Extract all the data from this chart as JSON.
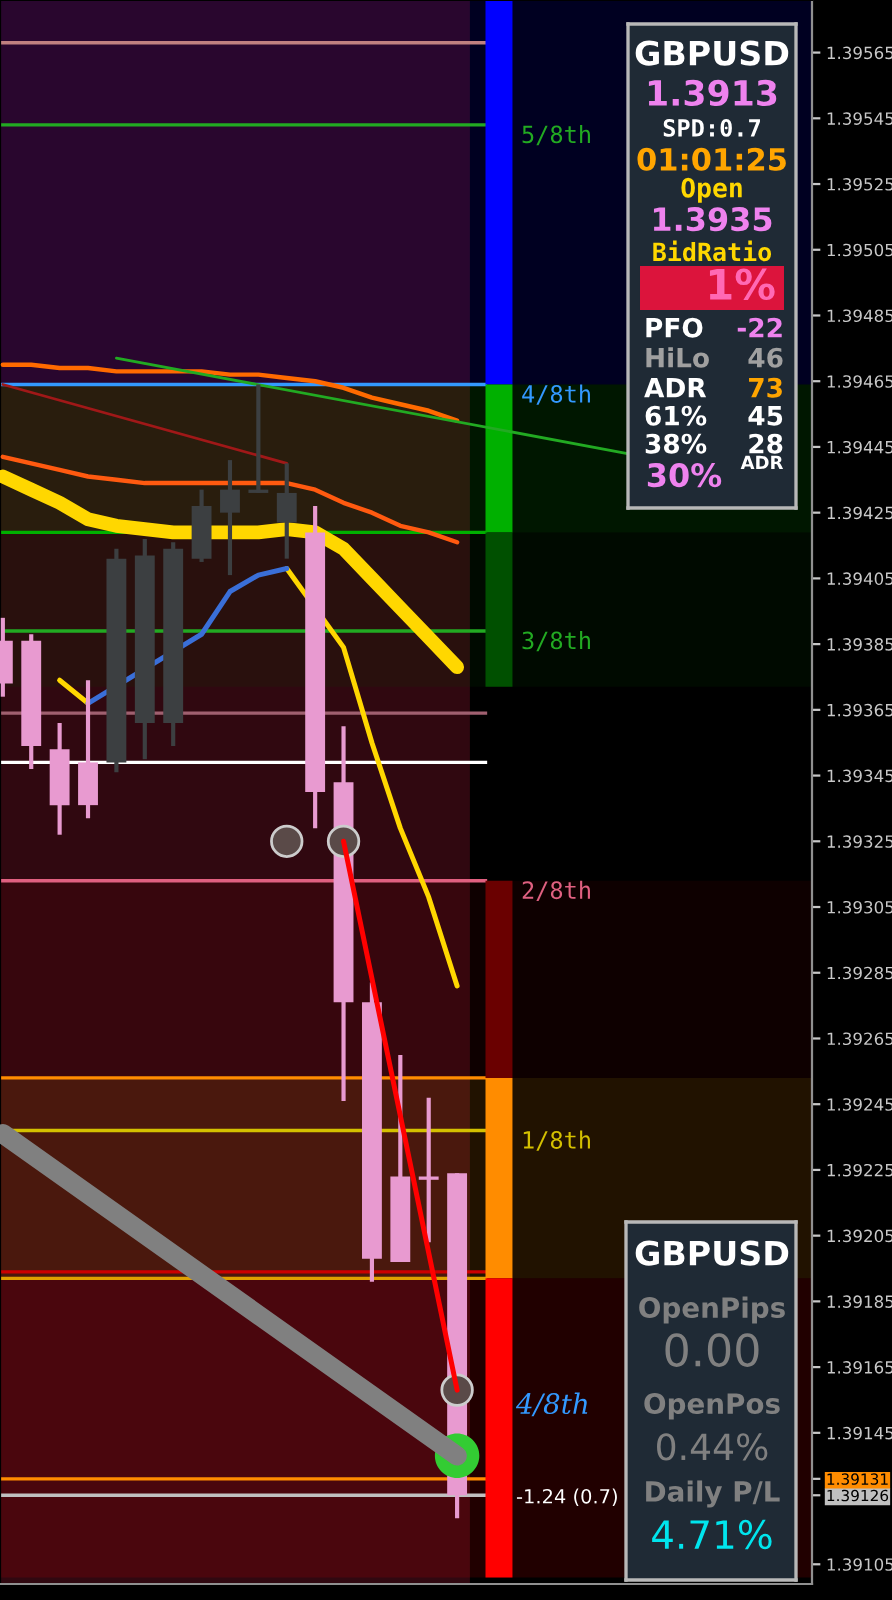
{
  "chart_data": [
    {
      "type": "candlestick",
      "categories": [
        null,
        null,
        null,
        null,
        null,
        null,
        null,
        null,
        null,
        null,
        null,
        null,
        null,
        null,
        null,
        null,
        null,
        null,
        null,
        null,
        null,
        null,
        null,
        null,
        null,
        null,
        null,
        null,
        null
      ],
      "ohlc": [
        [
          1.39386,
          1.39393,
          1.39369,
          1.39373
        ],
        [
          1.39386,
          1.39388,
          1.39347,
          1.39354
        ],
        [
          1.39353,
          1.39361,
          1.39327,
          1.39336
        ],
        [
          1.39349,
          1.39374,
          1.39332,
          1.39336
        ],
        [
          1.39349,
          1.39414,
          1.39346,
          1.39411
        ],
        [
          1.39361,
          1.39417,
          1.3935,
          1.39412
        ],
        [
          1.39361,
          1.39416,
          1.39354,
          1.39414
        ],
        [
          1.39411,
          1.39432,
          1.3941,
          1.39427
        ],
        [
          1.39425,
          1.39441,
          1.39406,
          1.39432
        ],
        [
          1.39431,
          1.39464,
          1.39431,
          1.39432
        ],
        [
          1.39422,
          1.3944,
          1.39411,
          1.39431
        ],
        [
          1.39419,
          1.39427,
          1.39329,
          1.3934
        ],
        [
          1.39343,
          1.3936,
          1.39246,
          1.39276
        ],
        [
          1.39276,
          1.39282,
          1.39191,
          1.39198
        ],
        [
          1.39223,
          1.3926,
          1.39197,
          1.39197
        ],
        [
          1.39223,
          1.39247,
          1.39203,
          1.39222
        ],
        [
          1.39224,
          1.39224,
          1.39119,
          1.39126
        ],
        null,
        null,
        null,
        null,
        null,
        null,
        null,
        null,
        null,
        null,
        null,
        null
      ],
      "colors": [
        "#e89ad0",
        "#e89ad0",
        "#e89ad0",
        "#e89ad0",
        "#3c3f41",
        "#3c3f41",
        "#3c3f41",
        "#3c3f41",
        "#3c3f41",
        "#3c3f41",
        "#3c3f41",
        "#e89ad0",
        "#e89ad0",
        "#e89ad0",
        "#e89ad0",
        "#e89ad0",
        "#e89ad0",
        null,
        null,
        null,
        null,
        null,
        null,
        null,
        null,
        null,
        null,
        null,
        null
      ],
      "series": [
        {
          "type": "line",
          "color": "#ff6a00",
          "values": [
            1.3947,
            1.3947,
            1.39469,
            1.39469,
            1.39468,
            1.39468,
            1.39468,
            1.39468,
            1.39467,
            1.39467,
            1.39466,
            1.39465,
            1.39463,
            1.3946,
            1.39458,
            1.39456,
            1.39453,
            null,
            null,
            null,
            null,
            null,
            null,
            null,
            null,
            null,
            null,
            null,
            null
          ]
        },
        {
          "type": "line",
          "color": "#ff5a10",
          "values": [
            1.39442,
            1.3944,
            1.39438,
            1.39436,
            1.39435,
            1.39434,
            1.39434,
            1.39434,
            1.39434,
            1.39434,
            1.39434,
            1.39432,
            1.39428,
            1.39425,
            1.39421,
            1.39419,
            1.39416,
            null,
            null,
            null,
            null,
            null,
            null,
            null,
            null,
            null,
            null,
            null,
            null
          ]
        },
        {
          "type": "line",
          "color": "#22aa22",
          "values": [
            null,
            null,
            null,
            null,
            1.39472,
            null,
            null,
            null,
            null,
            null,
            null,
            null,
            null,
            null,
            null,
            null,
            null,
            null,
            null,
            null,
            null,
            null,
            1.39443,
            null,
            null,
            null,
            null,
            null,
            null
          ]
        },
        {
          "type": "line",
          "color": "#a01818",
          "values": [
            1.39464,
            null,
            null,
            null,
            null,
            null,
            null,
            null,
            null,
            null,
            1.3944,
            null,
            null,
            null,
            null,
            null,
            null,
            null,
            null,
            null,
            null,
            null,
            null,
            null,
            null,
            null,
            null,
            null,
            null
          ]
        },
        {
          "type": "line",
          "color": "#ffd700",
          "values": [
            1.39436,
            1.39432,
            1.39428,
            1.39423,
            1.39421,
            1.3942,
            1.39419,
            1.39419,
            1.39419,
            1.39419,
            1.3942,
            1.39419,
            1.39414,
            1.39405,
            1.39396,
            1.39387,
            1.39378,
            null,
            null,
            null,
            null,
            null,
            null,
            null,
            null,
            null,
            null,
            null,
            null
          ]
        },
        {
          "type": "line",
          "color": "#ffd700",
          "values": [
            null,
            null,
            1.39374,
            1.39367,
            null,
            null,
            null,
            null,
            null,
            null,
            null,
            null,
            null,
            null,
            null,
            null,
            null,
            null,
            null,
            null,
            null,
            null,
            null,
            null,
            null,
            null,
            null,
            null,
            null
          ]
        },
        {
          "type": "line",
          "color": "#ffd700",
          "values": [
            null,
            null,
            null,
            null,
            null,
            null,
            null,
            null,
            null,
            null,
            1.39408,
            null,
            1.39384,
            1.39355,
            1.39329,
            1.39308,
            1.39281,
            null,
            null,
            null,
            null,
            null,
            null,
            null,
            null,
            null,
            null,
            null,
            null
          ]
        },
        {
          "type": "line",
          "color": "#3a6fd8",
          "values": [
            null,
            null,
            null,
            1.39367,
            null,
            null,
            null,
            1.39388,
            1.39401,
            1.39406,
            1.39408,
            null,
            null,
            null,
            null,
            null,
            null,
            null,
            null,
            null,
            null,
            null,
            null,
            null,
            null,
            null,
            null,
            null,
            null
          ]
        },
        {
          "type": "line",
          "color": "#808080",
          "values": [
            1.39236,
            null,
            null,
            null,
            null,
            null,
            null,
            null,
            null,
            null,
            null,
            null,
            null,
            null,
            null,
            null,
            1.39138,
            null,
            null,
            null,
            null,
            null,
            null,
            null,
            null,
            null,
            null,
            null,
            null
          ]
        },
        {
          "type": "line",
          "color": "#ff0000",
          "values": [
            null,
            null,
            null,
            null,
            null,
            null,
            null,
            null,
            null,
            null,
            null,
            null,
            1.39325,
            null,
            null,
            null,
            1.39158,
            null,
            null,
            null,
            null,
            null,
            null,
            null,
            null,
            null,
            null,
            null,
            null
          ]
        },
        {
          "type": "scatter",
          "color": "#5a4a48",
          "marker": "circle",
          "values": [
            null,
            null,
            null,
            null,
            null,
            null,
            null,
            null,
            null,
            null,
            1.39325,
            null,
            1.39325,
            null,
            null,
            null,
            1.39158,
            null,
            null,
            null,
            null,
            null,
            null,
            null,
            null,
            null,
            null,
            null,
            null
          ]
        },
        {
          "type": "scatter",
          "color": "#33cc33",
          "marker": "circle",
          "values": [
            null,
            null,
            null,
            null,
            null,
            null,
            null,
            null,
            null,
            null,
            null,
            null,
            null,
            null,
            null,
            null,
            1.39138,
            null,
            null,
            null,
            null,
            null,
            null,
            null,
            null,
            null,
            null,
            null,
            null
          ]
        }
      ],
      "ylim": [
        1.39099,
        1.39581
      ],
      "yticks": [
        1.39565,
        1.39545,
        1.39525,
        1.39505,
        1.39485,
        1.39465,
        1.39445,
        1.39425,
        1.39405,
        1.39385,
        1.39365,
        1.39345,
        1.39325,
        1.39305,
        1.39285,
        1.39265,
        1.39245,
        1.39225,
        1.39205,
        1.39185,
        1.39165,
        1.39145,
        1.39131,
        1.39126,
        1.39105
      ],
      "ref_lines": [
        {
          "axis": "y",
          "value": 1.39568,
          "color": "#c08080"
        },
        {
          "axis": "y",
          "value": 1.39543,
          "color": "#22aa22",
          "label": "5/8th"
        },
        {
          "axis": "y",
          "value": 1.39464,
          "color": "#3399ff",
          "label": "4/8th"
        },
        {
          "axis": "y",
          "value": 1.39419,
          "color": "#00b000"
        },
        {
          "axis": "y",
          "value": 1.39389,
          "color": "#22aa22",
          "label": "3/8th"
        },
        {
          "axis": "y",
          "value": 1.39364,
          "color": "#a06070"
        },
        {
          "axis": "y",
          "value": 1.39349,
          "color": "#ffffff"
        },
        {
          "axis": "y",
          "value": 1.39313,
          "color": "#e06080",
          "label": "2/8th"
        },
        {
          "axis": "y",
          "value": 1.39253,
          "color": "#ff8c00"
        },
        {
          "axis": "y",
          "value": 1.39237,
          "color": "#d4c000",
          "label": "1/8th"
        },
        {
          "axis": "y",
          "value": 1.39194,
          "color": "#cc0000"
        },
        {
          "axis": "y",
          "value": 1.39192,
          "color": "#e0a000"
        },
        {
          "axis": "y",
          "value": 1.39131,
          "color": "#ff8c00"
        },
        {
          "axis": "y",
          "value": 1.39126,
          "color": "#c0c0c0"
        }
      ],
      "bands": [
        {
          "axis": "y",
          "from": 1.39464,
          "to": 1.39581,
          "color": "#0000ff"
        },
        {
          "axis": "y",
          "from": 1.39419,
          "to": 1.39464,
          "color": "#00b000"
        },
        {
          "axis": "y",
          "from": 1.39372,
          "to": 1.39419,
          "color": "#005000"
        },
        {
          "axis": "y",
          "from": 1.39253,
          "to": 1.39313,
          "color": "#6a0000"
        },
        {
          "axis": "y",
          "from": 1.39192,
          "to": 1.39253,
          "color": "#ff8c00"
        },
        {
          "axis": "y",
          "from": 1.39101,
          "to": 1.39192,
          "color": "#ff0000"
        }
      ],
      "annotations": [
        "4/8th",
        "-1.24 (0.7)"
      ],
      "tick_labels": "y",
      "legend": false,
      "grid": false
    },
    {
      "type": "other",
      "annotations": [
        "GBPUSD",
        "1.3913",
        "SPD:0.7",
        "01:01:25",
        "Open",
        "1.3935",
        "BidRatio",
        "1%",
        "PFO",
        "-22",
        "HiLo",
        "46",
        "ADR",
        "73",
        "61%",
        "45",
        "38%",
        "28",
        "30%",
        "ADR"
      ]
    },
    {
      "type": "other",
      "annotations": [
        "GBPUSD",
        "OpenPips",
        "0.00",
        "OpenPos",
        "0.44%",
        "Daily P/L",
        "4.71%"
      ]
    }
  ]
}
